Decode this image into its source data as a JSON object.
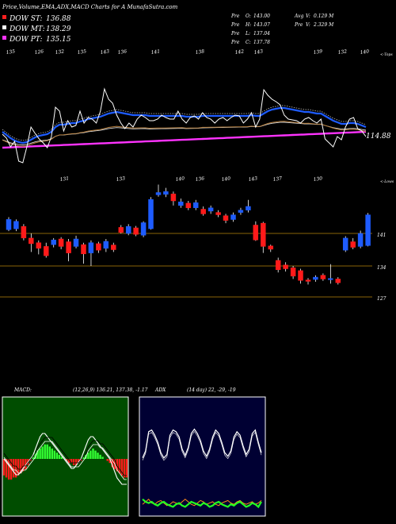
{
  "header": {
    "title": "Price,Volume,EMA,ADX,MACD Charts for A MunafaSutra.com",
    "dow": [
      {
        "label": "DOW ST:",
        "value": "136.88",
        "color": "#ff2020"
      },
      {
        "label": "DOW MT:",
        "value": "138.29",
        "color": "#ffffff"
      },
      {
        "label": "DOW PT:",
        "value": "135.15",
        "color": "#ff33ff"
      }
    ],
    "prev": [
      {
        "label": "Pre",
        "key": "O:",
        "value": "143.00"
      },
      {
        "label": "Pre",
        "key": "H:",
        "value": "143.07"
      },
      {
        "label": "Pre",
        "key": "L:",
        "value": "137.04"
      },
      {
        "label": "Pre",
        "key": "C:",
        "value": "137.78"
      }
    ],
    "avg": [
      {
        "label": "Avg",
        "key": "V:",
        "value": "0.129 M"
      },
      {
        "label": "Pre",
        "key": "V:",
        "value": "2.329 M"
      }
    ]
  },
  "ema_panel": {
    "top_labels": [
      "135",
      "126",
      "132",
      "135",
      "143",
      "136",
      "141",
      "138",
      "142",
      "143",
      "139",
      "132",
      "140"
    ],
    "top_tag": "<-Tops",
    "low_labels": [
      "131",
      "133",
      "140",
      "136",
      "140",
      "143",
      "137",
      "130"
    ],
    "low_tag": "<-Lows",
    "last_value": "114.88",
    "colors": {
      "price": "#ffffff",
      "ema_fast": "#1e5cff",
      "ema_mid": "#b07a3a",
      "ema_slow": "#d9d9d9",
      "ema_long": "#ff33ff"
    },
    "price_series": [
      169,
      174,
      185,
      178,
      203,
      205,
      185,
      160,
      168,
      175,
      180,
      186,
      172,
      135,
      140,
      165,
      152,
      160,
      158,
      140,
      155,
      148,
      150,
      155,
      140,
      112,
      125,
      130,
      145,
      155,
      162,
      155,
      160,
      150,
      145,
      148,
      152,
      152,
      150,
      145,
      148,
      150,
      150,
      140,
      150,
      155,
      148,
      146,
      150,
      142,
      148,
      150,
      155,
      150,
      148,
      152,
      148,
      145,
      146,
      155,
      150,
      142,
      160,
      150,
      113,
      120,
      125,
      128,
      132,
      145,
      150,
      151,
      152,
      155,
      150,
      148,
      152,
      155,
      150,
      175,
      180,
      185,
      172,
      176,
      160,
      150,
      148,
      162,
      165,
      172
    ],
    "ema_fast_series": [
      166,
      170,
      174,
      177,
      179,
      180,
      179,
      176,
      173,
      171,
      170,
      169,
      166,
      160,
      157,
      157,
      156,
      155,
      155,
      153,
      152,
      150,
      149,
      148,
      147,
      145,
      143,
      142,
      141,
      142,
      143,
      144,
      145,
      145,
      145,
      145,
      146,
      146,
      146,
      146,
      146,
      146,
      146,
      146,
      146,
      147,
      147,
      147,
      147,
      146,
      146,
      146,
      146,
      146,
      146,
      146,
      146,
      146,
      146,
      146,
      146,
      145,
      146,
      146,
      143,
      140,
      138,
      137,
      136,
      136,
      137,
      138,
      139,
      140,
      141,
      141,
      142,
      143,
      143,
      146,
      149,
      152,
      154,
      156,
      156,
      155,
      155,
      156,
      158,
      160
    ]
  },
  "price_panel": {
    "levels": [
      "141",
      "134",
      "127"
    ],
    "candles": [
      {
        "o": 141.8,
        "c": 144.0,
        "h": 144.5,
        "l": 141.5
      },
      {
        "o": 142.0,
        "c": 143.6,
        "h": 144.0,
        "l": 141.5
      },
      {
        "o": 142.5,
        "c": 140.0,
        "h": 143.0,
        "l": 139.5
      },
      {
        "o": 140.0,
        "c": 138.8,
        "h": 141.0,
        "l": 137.0
      },
      {
        "o": 139.0,
        "c": 137.8,
        "h": 139.5,
        "l": 136.5
      },
      {
        "o": 138.2,
        "c": 136.2,
        "h": 139.0,
        "l": 135.8
      },
      {
        "o": 138.6,
        "c": 139.6,
        "h": 140.0,
        "l": 138.0
      },
      {
        "o": 139.8,
        "c": 138.2,
        "h": 140.2,
        "l": 137.6
      },
      {
        "o": 139.2,
        "c": 136.8,
        "h": 139.8,
        "l": 135.0
      },
      {
        "o": 138.2,
        "c": 139.8,
        "h": 140.5,
        "l": 137.8
      },
      {
        "o": 138.6,
        "c": 136.6,
        "h": 139.0,
        "l": 134.5
      },
      {
        "o": 136.8,
        "c": 139.0,
        "h": 139.5,
        "l": 134.0
      },
      {
        "o": 138.8,
        "c": 137.4,
        "h": 139.2,
        "l": 136.8
      },
      {
        "o": 137.8,
        "c": 139.3,
        "h": 139.8,
        "l": 137.0
      },
      {
        "o": 138.5,
        "c": 137.5,
        "h": 139.0,
        "l": 137.0
      },
      {
        "o": 142.3,
        "c": 141.2,
        "h": 142.8,
        "l": 141.0
      },
      {
        "o": 141.0,
        "c": 142.5,
        "h": 143.0,
        "l": 140.6
      },
      {
        "o": 142.2,
        "c": 140.8,
        "h": 142.6,
        "l": 140.4
      },
      {
        "o": 140.6,
        "c": 143.3,
        "h": 143.6,
        "l": 140.2
      },
      {
        "o": 142.0,
        "c": 148.3,
        "h": 148.8,
        "l": 141.8
      },
      {
        "o": 149.3,
        "c": 149.8,
        "h": 151.5,
        "l": 148.9
      },
      {
        "o": 149.4,
        "c": 150.0,
        "h": 150.8,
        "l": 148.8
      },
      {
        "o": 149.5,
        "c": 148.0,
        "h": 150.0,
        "l": 147.0
      },
      {
        "o": 147.0,
        "c": 147.8,
        "h": 148.5,
        "l": 146.5
      },
      {
        "o": 147.5,
        "c": 146.5,
        "h": 148.0,
        "l": 146.0
      },
      {
        "o": 146.5,
        "c": 147.6,
        "h": 148.2,
        "l": 146.0
      },
      {
        "o": 146.2,
        "c": 145.2,
        "h": 146.8,
        "l": 144.8
      },
      {
        "o": 145.8,
        "c": 146.5,
        "h": 147.0,
        "l": 145.2
      },
      {
        "o": 145.5,
        "c": 145.0,
        "h": 146.0,
        "l": 144.5
      },
      {
        "o": 144.8,
        "c": 143.8,
        "h": 145.2,
        "l": 143.2
      },
      {
        "o": 144.0,
        "c": 145.0,
        "h": 145.5,
        "l": 143.5
      },
      {
        "o": 145.5,
        "c": 146.0,
        "h": 146.5,
        "l": 145.0
      },
      {
        "o": 146.0,
        "c": 146.8,
        "h": 148.2,
        "l": 145.5
      },
      {
        "o": 142.8,
        "c": 139.6,
        "h": 143.6,
        "l": 139.4
      },
      {
        "o": 143.2,
        "c": 138.2,
        "h": 143.5,
        "l": 136.8
      },
      {
        "o": 138.3,
        "c": 137.6,
        "h": 138.6,
        "l": 137.0
      },
      {
        "o": 135.2,
        "c": 133.2,
        "h": 135.8,
        "l": 132.6
      },
      {
        "o": 134.2,
        "c": 133.4,
        "h": 134.8,
        "l": 132.8
      },
      {
        "o": 133.6,
        "c": 131.8,
        "h": 134.0,
        "l": 131.2
      },
      {
        "o": 133.0,
        "c": 130.9,
        "h": 133.4,
        "l": 130.2
      },
      {
        "o": 131.0,
        "c": 130.7,
        "h": 131.4,
        "l": 130.0
      },
      {
        "o": 131.1,
        "c": 131.6,
        "h": 132.0,
        "l": 130.6
      },
      {
        "o": 132.0,
        "c": 131.2,
        "h": 132.4,
        "l": 130.8
      },
      {
        "o": 131.2,
        "c": 131.3,
        "h": 134.4,
        "l": 130.2
      },
      {
        "o": 131.2,
        "c": 130.4,
        "h": 131.6,
        "l": 130.0
      },
      {
        "o": 137.4,
        "c": 140.0,
        "h": 140.4,
        "l": 137.0
      },
      {
        "o": 139.2,
        "c": 138.0,
        "h": 140.0,
        "l": 137.6
      },
      {
        "o": 138.2,
        "c": 141.0,
        "h": 141.6,
        "l": 137.8
      },
      {
        "o": 138.4,
        "c": 145.0,
        "h": 145.4,
        "l": 138.2
      }
    ],
    "colors": {
      "up": "#1e5cff",
      "down": "#ff1a1a",
      "level": "#b8860b"
    }
  },
  "macd_panel": {
    "label": "MACD:",
    "params": "(12,26,9) 136.21, 137.38, -1.17",
    "hist": [
      -8,
      -9,
      -10,
      -10,
      -9,
      -9,
      -8,
      -7,
      -6,
      -5,
      -3,
      -1,
      1,
      3,
      4,
      5,
      6,
      7,
      7,
      6,
      5,
      4,
      3,
      2,
      1,
      0,
      -1,
      -2,
      -2,
      -3,
      -3,
      -2,
      -1,
      1,
      2,
      3,
      4,
      5,
      4,
      3,
      2,
      1,
      0,
      -1,
      -2,
      -4,
      -5,
      -6,
      -7,
      -8,
      -9,
      -9
    ],
    "macd_line": [
      0,
      -1,
      -2,
      -3,
      -4,
      -5,
      -5,
      -4,
      -3,
      -2,
      -1,
      0,
      1,
      3,
      5,
      7,
      8,
      8,
      7,
      6,
      5,
      4,
      3,
      2,
      1,
      0,
      -1,
      -2,
      -3,
      -3,
      -2,
      -1,
      0,
      2,
      4,
      6,
      7,
      7,
      6,
      5,
      4,
      3,
      2,
      1,
      0,
      -2,
      -4,
      -6,
      -7,
      -8,
      -8,
      -8
    ],
    "signal_line": [
      1,
      0,
      -1,
      -2,
      -3,
      -3,
      -4,
      -4,
      -3,
      -3,
      -2,
      -1,
      0,
      1,
      3,
      4,
      5,
      6,
      6,
      6,
      6,
      5,
      4,
      3,
      2,
      1,
      0,
      -1,
      -2,
      -2,
      -2,
      -2,
      -1,
      0,
      1,
      3,
      4,
      5,
      5,
      5,
      4,
      4,
      3,
      2,
      1,
      0,
      -1,
      -3,
      -4,
      -5,
      -6,
      -6
    ],
    "colors": {
      "bg": "#004d00",
      "pos": "#33ff33",
      "neg": "#ff1a1a",
      "line": "#ffffff"
    }
  },
  "adx_panel": {
    "label": "ADX",
    "params": "(14 day) 22, -29, -19",
    "adx": [
      12,
      20,
      42,
      44,
      38,
      30,
      18,
      12,
      16,
      38,
      44,
      42,
      36,
      22,
      15,
      24,
      40,
      45,
      40,
      32,
      20,
      14,
      22,
      36,
      44,
      40,
      30,
      18,
      14,
      20,
      36,
      42,
      38,
      26,
      16,
      22,
      40,
      44,
      30,
      18
    ],
    "di_plus": [
      12,
      10,
      9,
      10,
      8,
      7,
      9,
      10,
      8,
      7,
      6,
      8,
      9,
      7,
      6,
      8,
      10,
      9,
      8,
      7,
      9,
      8,
      6,
      7,
      9,
      10,
      8,
      7,
      6,
      8,
      7,
      9,
      10,
      8,
      6,
      7,
      9,
      8,
      6,
      10
    ],
    "di_minus": [
      8,
      10,
      12,
      9,
      8,
      10,
      11,
      9,
      7,
      8,
      10,
      9,
      8,
      10,
      12,
      10,
      8,
      7,
      9,
      11,
      10,
      8,
      9,
      10,
      8,
      7,
      9,
      10,
      11,
      9,
      8,
      10,
      11,
      9,
      8,
      9,
      10,
      8,
      9,
      11
    ],
    "colors": {
      "bg": "#000033",
      "border": "#ffffff",
      "adx": "#ffffff",
      "di_plus": "#22ff22",
      "di_minus": "#ff8c1a"
    }
  },
  "chart_data": [
    {
      "type": "line",
      "panel": "ema_panel",
      "series": [
        {
          "name": "DOW ST",
          "values": [
            136.88
          ]
        },
        {
          "name": "DOW MT",
          "values": [
            138.29
          ]
        },
        {
          "name": "DOW PT",
          "values": [
            135.15
          ]
        }
      ],
      "title": "Price,Volume,EMA,ADX,MACD Charts for A MunafaSutra.com"
    },
    {
      "type": "candlestick",
      "panel": "price_panel",
      "y_levels": [
        141,
        134,
        127
      ],
      "ylim": [
        125,
        152
      ]
    },
    {
      "type": "bar",
      "panel": "macd_panel",
      "values_label": "MACD (12,26,9) 136.21, 137.38, -1.17"
    },
    {
      "type": "line",
      "panel": "adx_panel",
      "values_label": "ADX (14 day) 22, -29, -19"
    }
  ]
}
